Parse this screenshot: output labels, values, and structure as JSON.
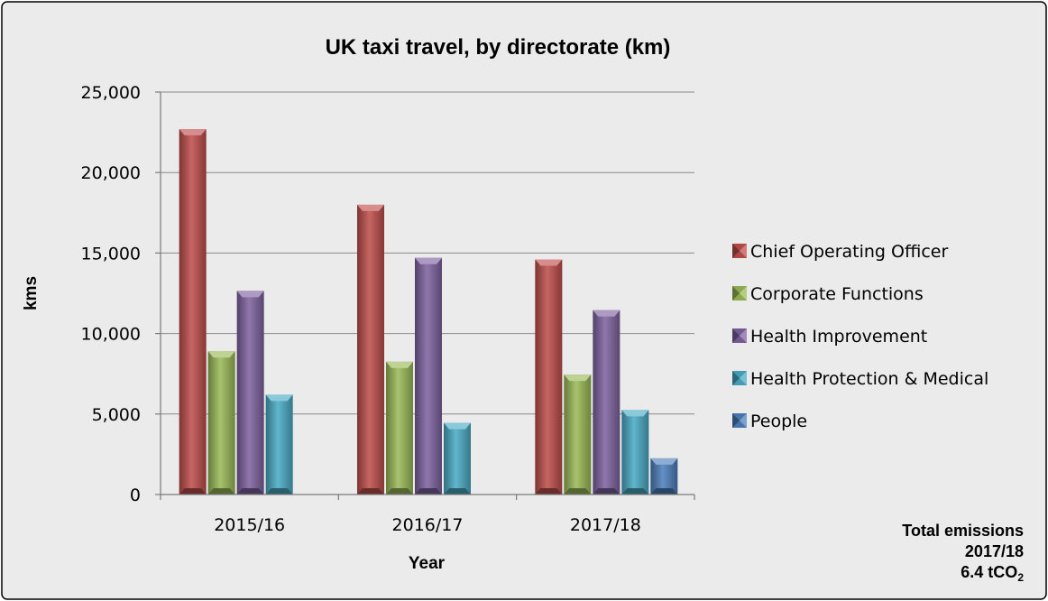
{
  "chart_data": {
    "type": "bar",
    "title": "UK taxi travel, by directorate (km)",
    "xlabel": "Year",
    "ylabel": "kms",
    "categories": [
      "2015/16",
      "2016/17",
      "2017/18"
    ],
    "ylim": [
      0,
      25000
    ],
    "yticks": [
      0,
      5000,
      10000,
      15000,
      20000,
      25000
    ],
    "ytick_labels": [
      "0",
      "5,000",
      "10,000",
      "15,000",
      "20,000",
      "25,000"
    ],
    "grid": true,
    "legend_position": "right",
    "series": [
      {
        "name": "Chief Operating Officer",
        "color": "#c0504d",
        "values": [
          22700,
          18000,
          14600
        ]
      },
      {
        "name": "Corporate Functions",
        "color": "#9bbb59",
        "values": [
          8900,
          8250,
          7450
        ]
      },
      {
        "name": "Health Improvement",
        "color": "#8064a2",
        "values": [
          12650,
          14700,
          11450
        ]
      },
      {
        "name": "Health Protection & Medical",
        "color": "#4bacc6",
        "values": [
          6200,
          4450,
          5250
        ]
      },
      {
        "name": "People",
        "color": "#4f81bd",
        "values": [
          null,
          null,
          2250
        ]
      }
    ]
  },
  "note": {
    "line1": "Total emissions",
    "line2": "2017/18",
    "line3_main": "6.4 tCO",
    "line3_sub": "2"
  }
}
